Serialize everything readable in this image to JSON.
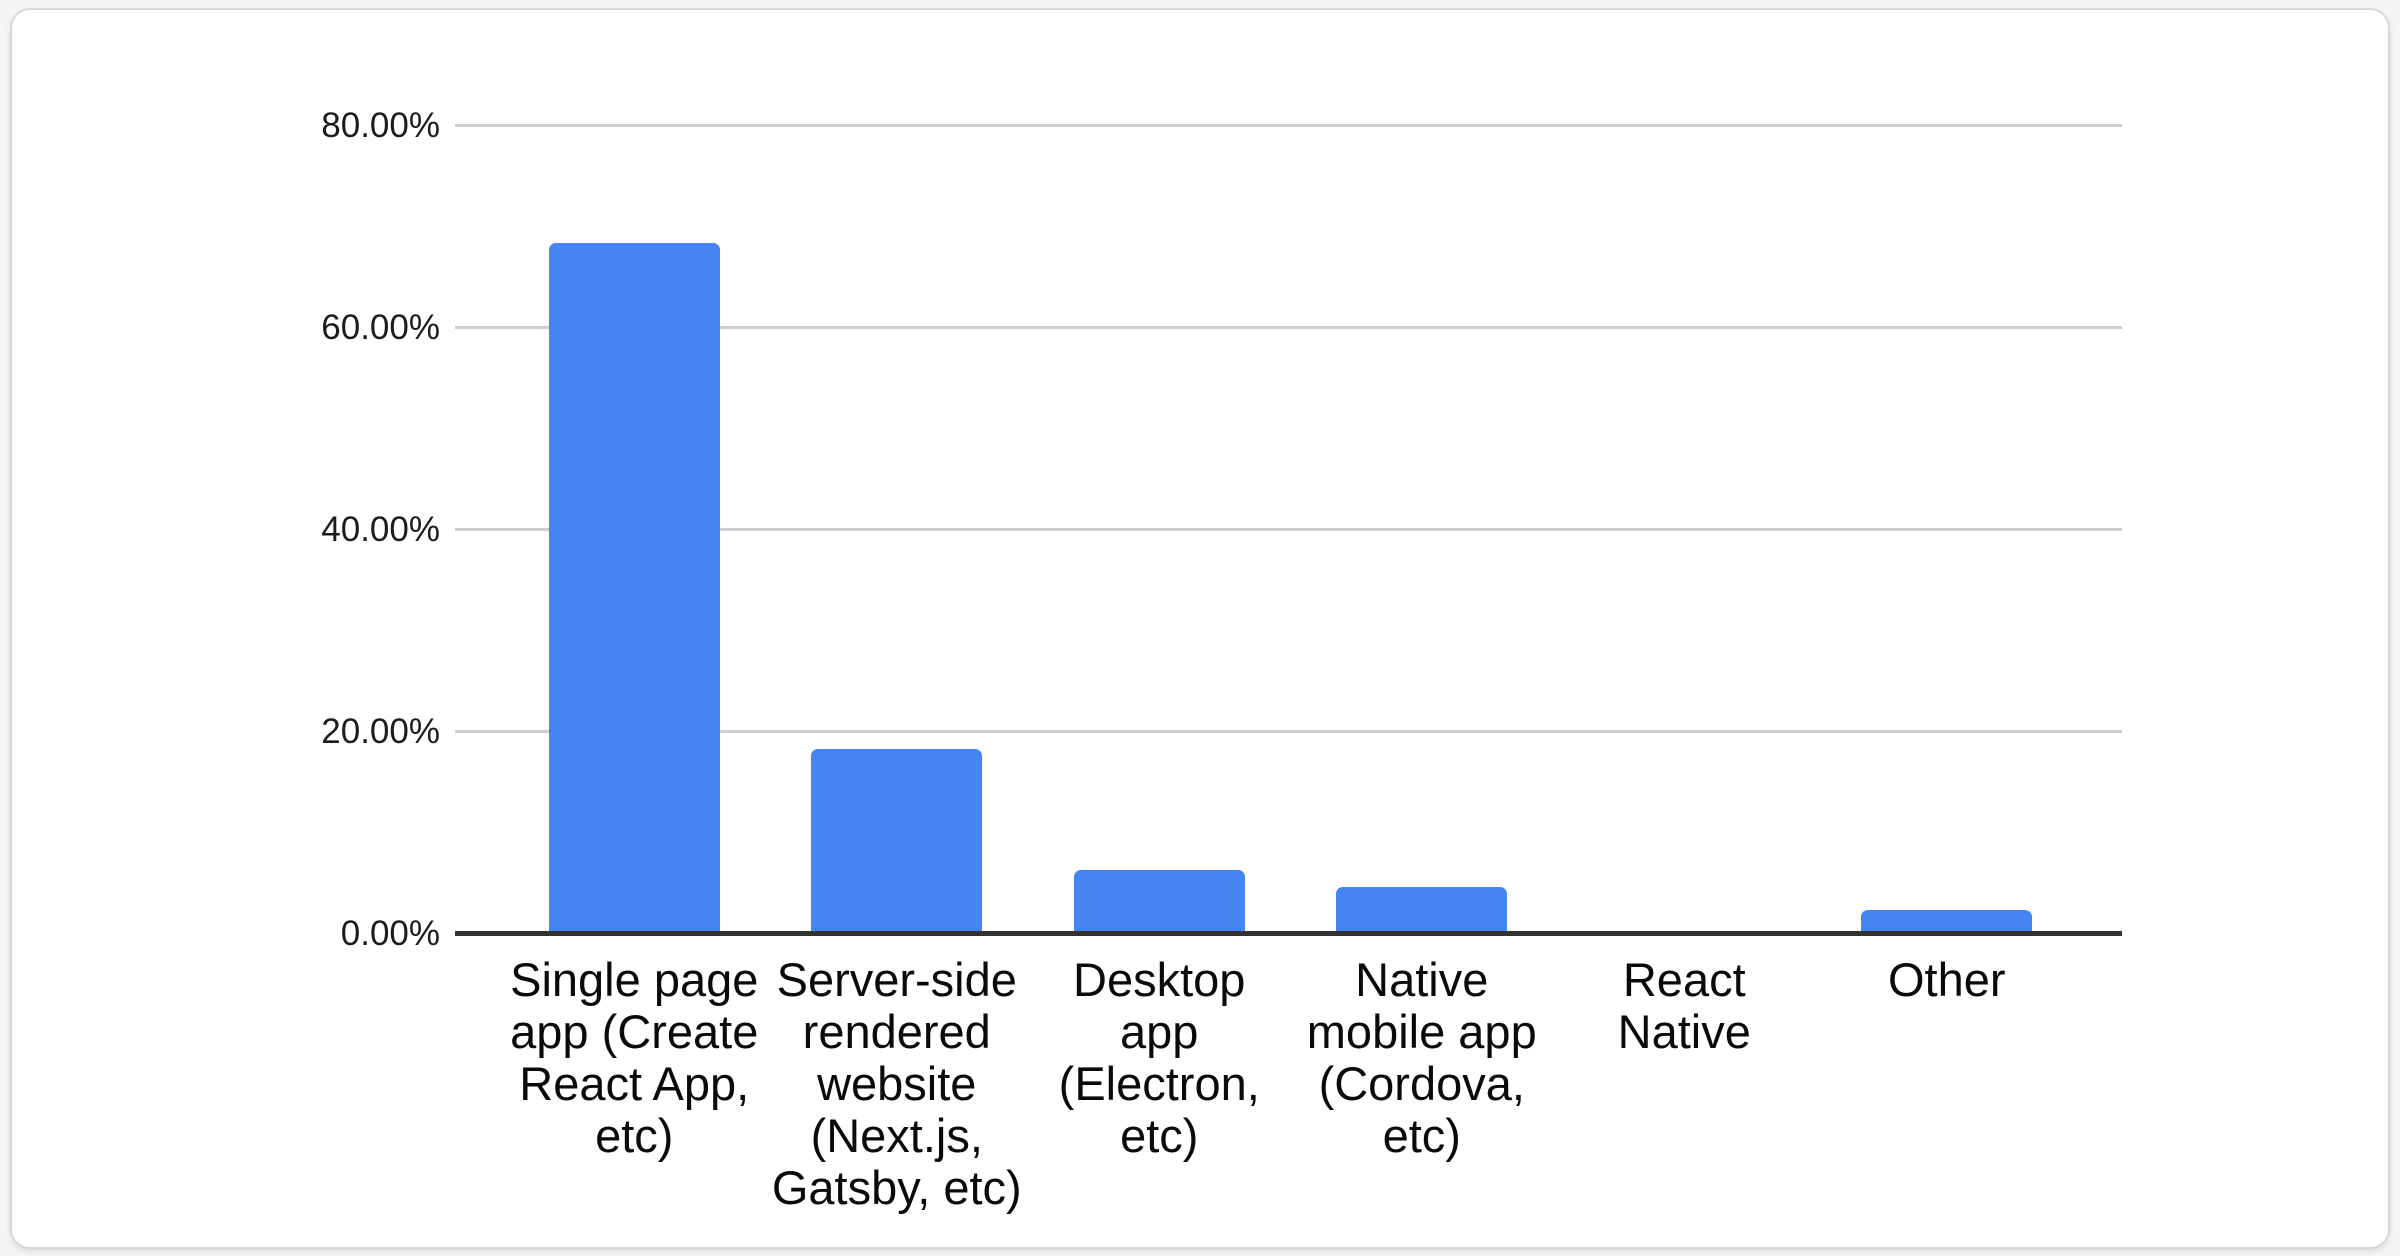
{
  "chart_data": {
    "type": "bar",
    "title": "",
    "xlabel": "",
    "ylabel": "",
    "categories": [
      "Single page app (Create React App, etc)",
      "Server-side rendered website (Next.js, Gatsby, etc)",
      "Desktop app (Electron, etc)",
      "Native mobile app (Cordova, etc)",
      "React Native",
      "Other"
    ],
    "categories_display": [
      "Single page\napp (Create\nReact App,\netc)",
      "Server-side\nrendered\nwebsite\n(Next.js,\nGatsby, etc)",
      "Desktop\napp\n(Electron,\netc)",
      "Native\nmobile app\n(Cordova,\netc)",
      "React\nNative",
      "Other"
    ],
    "values": [
      68.4,
      18.3,
      6.3,
      4.7,
      0,
      2.4
    ],
    "value_unit": "%",
    "ylim": [
      0,
      80
    ],
    "y_ticks": [
      {
        "value": 80,
        "label": "80.00%"
      },
      {
        "value": 60,
        "label": "60.00%"
      },
      {
        "value": 40,
        "label": "40.00%"
      },
      {
        "value": 20,
        "label": "20.00%"
      },
      {
        "value": 0,
        "label": "0.00%"
      }
    ],
    "grid": true,
    "legend_position": "none",
    "colors": {
      "bar": "#4484f3",
      "gridline": "#cdcdcd",
      "axis_line": "#333333",
      "y_label_text": "#1c1c1c",
      "x_label_text": "#0a0a0a",
      "card_background": "#ffffff",
      "card_border": "#d8d8d8",
      "page_background": "#f5f5f5"
    }
  }
}
